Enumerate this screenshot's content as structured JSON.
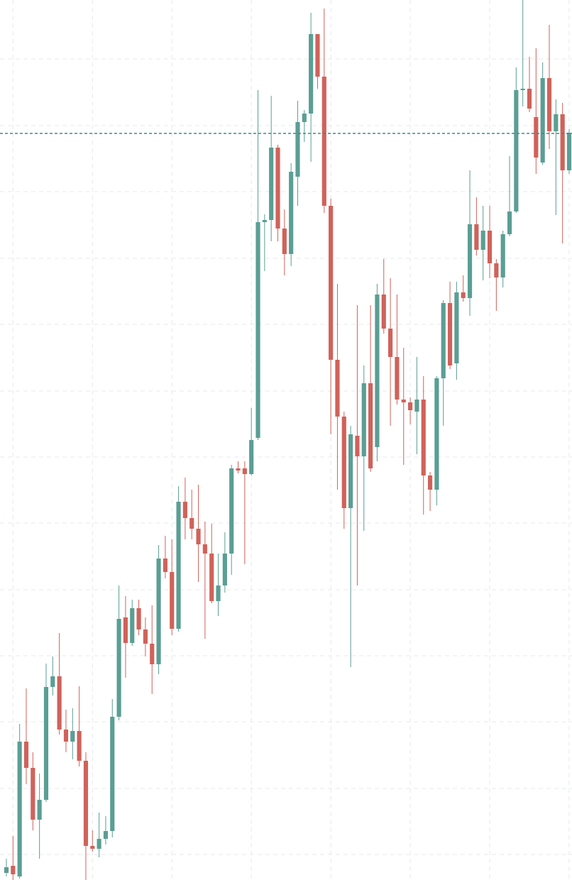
{
  "chart_data": {
    "type": "candlestick",
    "up_color": "#5a9e94",
    "down_color": "#d0625a",
    "grid": true,
    "price_line": 1052,
    "price_line_color": "#3e8a8c",
    "xlim": [
      -0.965,
      85.43
    ],
    "xticks": [
      1,
      13,
      25,
      37,
      49,
      61,
      73,
      85
    ],
    "ylim": [
      0,
      1240
    ],
    "yticks": [
      36,
      129,
      223,
      316,
      409,
      503,
      596,
      689,
      783,
      876,
      970,
      1063,
      1157
    ],
    "open": [
      10,
      20,
      5,
      195,
      158,
      85,
      113,
      272,
      287,
      212,
      195,
      210,
      168,
      48,
      44,
      58,
      69,
      230,
      370,
      334,
      383,
      353,
      333,
      304,
      453,
      434,
      354,
      533,
      510,
      495,
      473,
      460,
      393,
      415,
      460,
      580,
      580,
      572,
      623,
      927,
      930,
      1032,
      918,
      882,
      991,
      1068,
      1080,
      1192,
      1132,
      950,
      733,
      653,
      524,
      626,
      597,
      700,
      610,
      825,
      777,
      737,
      677,
      673,
      660,
      677,
      570,
      550,
      707,
      813,
      728,
      828,
      820,
      924,
      888,
      915,
      869,
      849,
      910,
      942,
      1113,
      1115,
      1075,
      1011,
      1130,
      1055,
      1079,
      1000
    ],
    "high": [
      30,
      62,
      220,
      270,
      180,
      150,
      305,
      315,
      348,
      240,
      242,
      273,
      180,
      70,
      95,
      90,
      255,
      415,
      400,
      395,
      395,
      370,
      387,
      472,
      485,
      480,
      555,
      567,
      550,
      557,
      505,
      502,
      460,
      490,
      585,
      590,
      590,
      665,
      1113,
      938,
      1105,
      1036,
      945,
      1010,
      1098,
      1085,
      1222,
      1192,
      1228,
      960,
      840,
      660,
      640,
      810,
      725,
      810,
      840,
      875,
      848,
      825,
      750,
      680,
      737,
      710,
      575,
      710,
      817,
      843,
      843,
      852,
      1000,
      962,
      950,
      950,
      875,
      915,
      1020,
      1145,
      1240,
      1160,
      1172,
      1152,
      1205,
      1100,
      1095,
      1058
    ],
    "low": [
      5,
      0,
      2,
      135,
      70,
      30,
      110,
      260,
      205,
      180,
      170,
      160,
      0,
      40,
      32,
      50,
      60,
      225,
      285,
      330,
      345,
      315,
      262,
      290,
      425,
      345,
      350,
      480,
      480,
      420,
      340,
      390,
      372,
      405,
      430,
      573,
      445,
      570,
      620,
      858,
      900,
      900,
      852,
      865,
      950,
      1040,
      1012,
      1115,
      940,
      628,
      550,
      495,
      300,
      415,
      492,
      575,
      590,
      770,
      640,
      670,
      585,
      642,
      600,
      515,
      520,
      528,
      640,
      720,
      705,
      815,
      795,
      880,
      845,
      848,
      802,
      835,
      907,
      940,
      1090,
      1082,
      995,
      1008,
      1030,
      937,
      897,
      995
    ],
    "close": [
      18,
      8,
      195,
      158,
      85,
      113,
      272,
      287,
      212,
      195,
      210,
      168,
      48,
      44,
      58,
      69,
      230,
      368,
      334,
      383,
      353,
      333,
      304,
      453,
      434,
      354,
      533,
      510,
      495,
      473,
      460,
      393,
      415,
      460,
      580,
      577,
      572,
      620,
      927,
      930,
      1032,
      918,
      882,
      998,
      1068,
      1080,
      1192,
      1132,
      950,
      733,
      653,
      524,
      628,
      597,
      700,
      580,
      825,
      777,
      737,
      677,
      673,
      662,
      677,
      570,
      550,
      707,
      813,
      725,
      828,
      820,
      924,
      888,
      915,
      869,
      849,
      910,
      942,
      1113,
      1115,
      1087,
      1018,
      1130,
      1055,
      1079,
      1000,
      1053
    ]
  }
}
